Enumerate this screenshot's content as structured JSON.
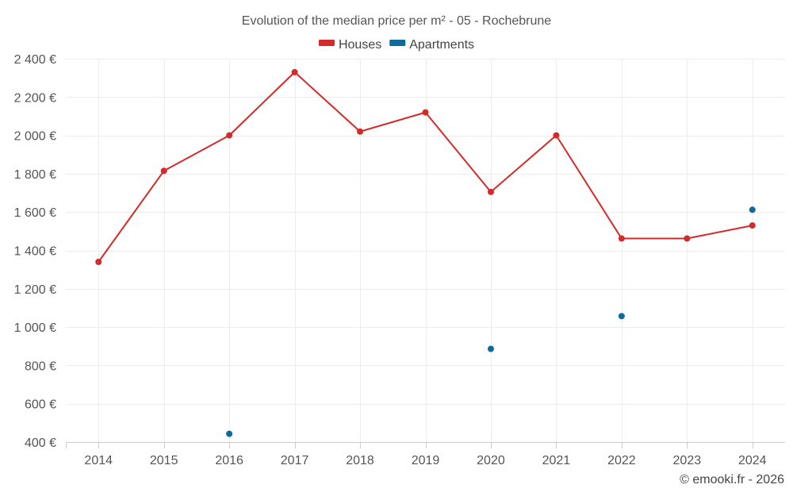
{
  "chart_data": {
    "type": "line",
    "title": "Evolution of the median price per m² - 05 - Rochebrune",
    "categories": [
      "2014",
      "2015",
      "2016",
      "2017",
      "2018",
      "2019",
      "2020",
      "2021",
      "2022",
      "2023",
      "2024"
    ],
    "series": [
      {
        "name": "Houses",
        "color": "#d42a2a",
        "values": [
          1340,
          1815,
          2000,
          2330,
          2020,
          2120,
          1705,
          2000,
          1462,
          1462,
          1530
        ]
      },
      {
        "name": "Apartments",
        "color": "#0e6a9c",
        "values": [
          null,
          null,
          443,
          null,
          null,
          null,
          886,
          null,
          1057,
          null,
          1612
        ]
      }
    ],
    "y_ticks": [
      "2 400 €",
      "2 200 €",
      "2 000 €",
      "1 800 €",
      "1 600 €",
      "1 400 €",
      "1 200 €",
      "1 000 €",
      "800 €",
      "600 €",
      "400 €"
    ],
    "y_tick_values": [
      2400,
      2200,
      2000,
      1800,
      1600,
      1400,
      1200,
      1000,
      800,
      600,
      400
    ],
    "ylim": [
      400,
      2400
    ],
    "xlabel": "",
    "ylabel": "",
    "grid": true,
    "legend_position": "top-center"
  },
  "credit": "© emooki.fr - 2026"
}
